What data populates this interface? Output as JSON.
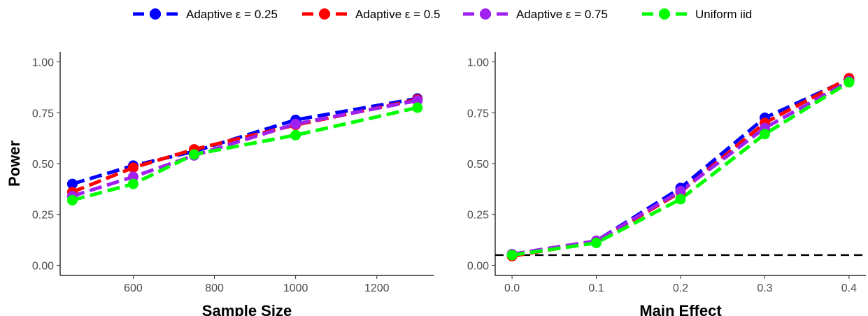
{
  "legend": [
    {
      "label": "Adaptive ε = 0.25",
      "color": "#0000ff"
    },
    {
      "label": "Adaptive ε = 0.5",
      "color": "#ff0000"
    },
    {
      "label": "Adaptive ε = 0.75",
      "color": "#a020f0"
    },
    {
      "label": "Uniform iid",
      "color": "#00ff00"
    }
  ],
  "chart_data": [
    {
      "type": "line",
      "xlabel": "Sample Size",
      "ylabel": "Power",
      "xlim": [
        420,
        1340
      ],
      "ylim": [
        -0.05,
        1.05
      ],
      "xticks": [
        600,
        800,
        1000,
        1200
      ],
      "yticks": [
        0.0,
        0.25,
        0.5,
        0.75,
        1.0
      ],
      "ytick_labels": [
        "0.00",
        "0.25",
        "0.50",
        "0.75",
        "1.00"
      ],
      "xtick_labels": [
        "600",
        "800",
        "1000",
        "1200"
      ],
      "x": [
        450,
        600,
        750,
        1000,
        1300
      ],
      "series": [
        {
          "name": "Adaptive ε = 0.25",
          "color": "#0000ff",
          "values": [
            0.4,
            0.49,
            0.56,
            0.715,
            0.82
          ]
        },
        {
          "name": "Adaptive ε = 0.5",
          "color": "#ff0000",
          "values": [
            0.36,
            0.48,
            0.57,
            0.69,
            0.815
          ]
        },
        {
          "name": "Adaptive ε = 0.75",
          "color": "#a020f0",
          "values": [
            0.34,
            0.435,
            0.54,
            0.695,
            0.81
          ]
        },
        {
          "name": "Uniform iid",
          "color": "#00ff00",
          "values": [
            0.32,
            0.4,
            0.545,
            0.64,
            0.775
          ]
        }
      ],
      "reference_line": null,
      "grid": false,
      "legend_position": "top"
    },
    {
      "type": "line",
      "xlabel": "Main Effect",
      "ylabel": "",
      "xlim": [
        -0.02,
        0.42
      ],
      "ylim": [
        -0.05,
        1.05
      ],
      "xticks": [
        0.0,
        0.1,
        0.2,
        0.3,
        0.4
      ],
      "xtick_labels": [
        "0.0",
        "0.1",
        "0.2",
        "0.3",
        "0.4"
      ],
      "yticks": [
        0.0,
        0.25,
        0.5,
        0.75,
        1.0
      ],
      "ytick_labels": [
        "0.00",
        "0.25",
        "0.50",
        "0.75",
        "1.00"
      ],
      "x": [
        0.0,
        0.1,
        0.2,
        0.3,
        0.4
      ],
      "series": [
        {
          "name": "Adaptive ε = 0.25",
          "color": "#0000ff",
          "values": [
            0.05,
            0.12,
            0.38,
            0.725,
            0.915
          ]
        },
        {
          "name": "Adaptive ε = 0.5",
          "color": "#ff0000",
          "values": [
            0.045,
            0.115,
            0.36,
            0.7,
            0.92
          ]
        },
        {
          "name": "Adaptive ε = 0.75",
          "color": "#a020f0",
          "values": [
            0.055,
            0.12,
            0.365,
            0.675,
            0.905
          ]
        },
        {
          "name": "Uniform iid",
          "color": "#00ff00",
          "values": [
            0.05,
            0.11,
            0.325,
            0.645,
            0.9
          ]
        }
      ],
      "reference_line": {
        "y": 0.05,
        "style": "dashed",
        "color": "#000000"
      },
      "grid": false,
      "legend_position": "top"
    }
  ]
}
